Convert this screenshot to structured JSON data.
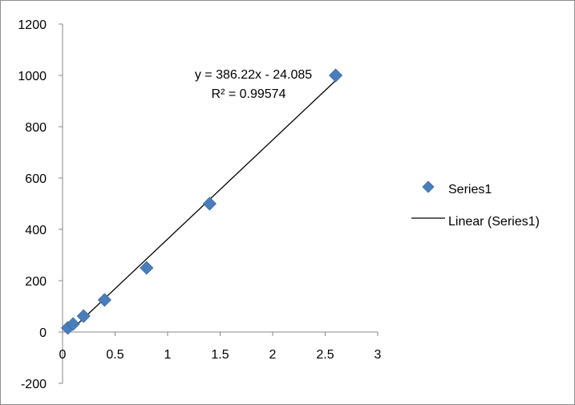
{
  "chart_data": {
    "type": "scatter",
    "title": "",
    "xlabel": "",
    "ylabel": "",
    "xlim": [
      0,
      3
    ],
    "ylim": [
      -200,
      1200
    ],
    "x_ticks": [
      0,
      0.5,
      1,
      1.5,
      2,
      2.5,
      3
    ],
    "y_ticks": [
      -200,
      0,
      200,
      400,
      600,
      800,
      1000,
      1200
    ],
    "x_tick_labels": [
      "0",
      "0.5",
      "1",
      "1.5",
      "2",
      "2.5",
      "3"
    ],
    "y_tick_labels": [
      "-200",
      "0",
      "200",
      "400",
      "600",
      "800",
      "1000",
      "1200"
    ],
    "grid": false,
    "legend_position": "right",
    "series": [
      {
        "name": "Series1",
        "marker": "diamond",
        "color": "#4a7ebb",
        "x": [
          0.05,
          0.1,
          0.2,
          0.4,
          0.8,
          1.4,
          2.6
        ],
        "y": [
          16,
          31,
          62,
          125,
          250,
          500,
          1000
        ]
      }
    ],
    "trendline": {
      "name": "Linear (Series1)",
      "color": "#000000",
      "slope": 386.22,
      "intercept": -24.085,
      "x_range": [
        0.05,
        2.6
      ],
      "equation_label": "y = 386.22x - 24.085",
      "r2_label": "R² = 0.99574"
    },
    "legend": [
      {
        "label": "Series1",
        "kind": "marker"
      },
      {
        "label": "Linear (Series1)",
        "kind": "line"
      }
    ]
  }
}
